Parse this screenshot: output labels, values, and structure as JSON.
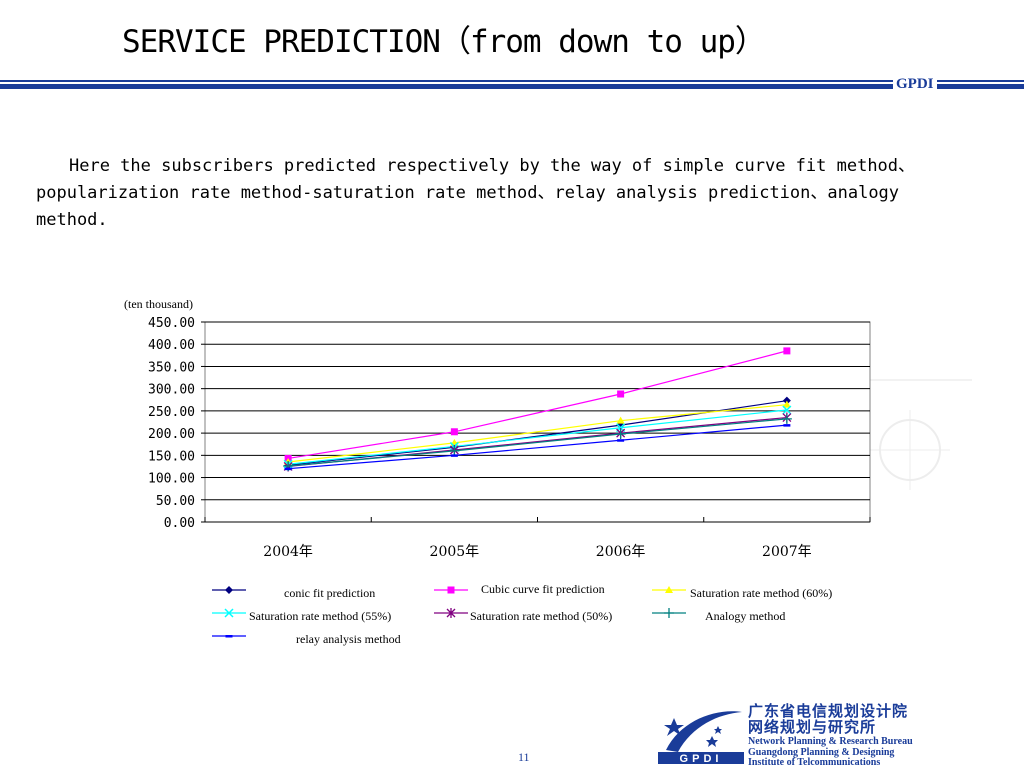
{
  "slide": {
    "title": "SERVICE PREDICTION（from down to up）",
    "brand": "GPDI",
    "paragraph": "Here the subscribers predicted respectively by the way of simple curve fit method、popularization rate method-saturation rate method、relay analysis prediction、analogy method.",
    "page_number": "11"
  },
  "footer": {
    "org_cn_line1": "广东省电信规划设计院",
    "org_cn_line2": "网络规划与研究所",
    "org_en_line1": "Network Planning & Research Bureau",
    "org_en_line2": "Guangdong Planning & Designing",
    "org_en_line3": "Institute of Telcommunications",
    "logo_text": "GPDI"
  },
  "chart_data": {
    "type": "line",
    "unit_label": "(ten thousand)",
    "categories": [
      "2004年",
      "2005年",
      "2006年",
      "2007年"
    ],
    "ylim": [
      0,
      450
    ],
    "yticks": [
      "450.00",
      "400.00",
      "350.00",
      "300.00",
      "250.00",
      "200.00",
      "150.00",
      "100.00",
      "50.00",
      "0.00"
    ],
    "grid": true,
    "legend_position": "bottom",
    "series": [
      {
        "name": "conic fit prediction",
        "values": [
          128,
          168,
          218,
          273
        ],
        "color": "#000080",
        "marker": "diamond"
      },
      {
        "name": "Cubic curve fit prediction",
        "values": [
          143,
          203,
          288,
          385
        ],
        "color": "#ff00ff",
        "marker": "square"
      },
      {
        "name": "Saturation rate method (60%)",
        "values": [
          135,
          178,
          228,
          264
        ],
        "color": "#ffff00",
        "marker": "triangle"
      },
      {
        "name": "Saturation rate method (55%)",
        "values": [
          130,
          170,
          212,
          252
        ],
        "color": "#00ffff",
        "marker": "x"
      },
      {
        "name": "Saturation rate method (50%)",
        "values": [
          125,
          162,
          200,
          235
        ],
        "color": "#800080",
        "marker": "star"
      },
      {
        "name": "Analogy method",
        "values": [
          126,
          160,
          198,
          232
        ],
        "color": "#008080",
        "marker": "plus"
      },
      {
        "name": "relay analysis method",
        "values": [
          120,
          150,
          184,
          218
        ],
        "color": "#0000ff",
        "marker": "dash"
      }
    ]
  }
}
